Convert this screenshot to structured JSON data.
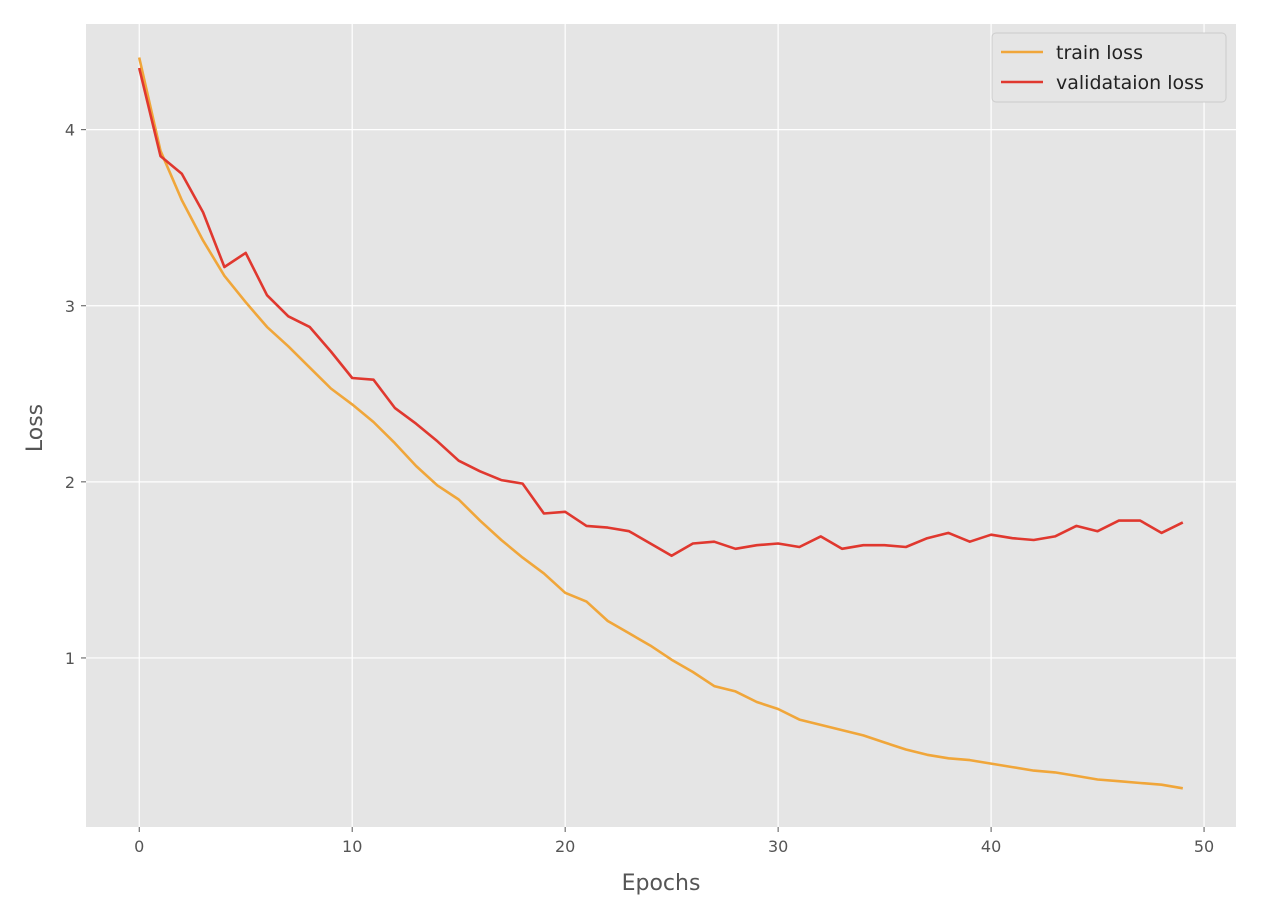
{
  "chart_data": {
    "type": "line",
    "title": "",
    "xlabel": "Epochs",
    "ylabel": "Loss",
    "xlim": [
      -2.5,
      51.5
    ],
    "ylim": [
      0.04,
      4.6
    ],
    "xticks": [
      0,
      10,
      20,
      30,
      40,
      50
    ],
    "yticks": [
      1,
      2,
      3,
      4
    ],
    "grid": true,
    "legend_position": "top-right",
    "x": [
      0,
      1,
      2,
      3,
      4,
      5,
      6,
      7,
      8,
      9,
      10,
      11,
      12,
      13,
      14,
      15,
      16,
      17,
      18,
      19,
      20,
      21,
      22,
      23,
      24,
      25,
      26,
      27,
      28,
      29,
      30,
      31,
      32,
      33,
      34,
      35,
      36,
      37,
      38,
      39,
      40,
      41,
      42,
      43,
      44,
      45,
      46,
      47,
      48,
      49
    ],
    "series": [
      {
        "name": "train loss",
        "color": "#f0a63a",
        "values": [
          4.41,
          3.88,
          3.6,
          3.37,
          3.17,
          3.02,
          2.88,
          2.77,
          2.65,
          2.53,
          2.44,
          2.34,
          2.22,
          2.09,
          1.98,
          1.9,
          1.78,
          1.67,
          1.57,
          1.48,
          1.37,
          1.32,
          1.21,
          1.14,
          1.07,
          0.99,
          0.92,
          0.84,
          0.81,
          0.75,
          0.71,
          0.65,
          0.62,
          0.59,
          0.56,
          0.52,
          0.48,
          0.45,
          0.43,
          0.42,
          0.4,
          0.38,
          0.36,
          0.35,
          0.33,
          0.31,
          0.3,
          0.29,
          0.28,
          0.26
        ]
      },
      {
        "name": "validataion loss",
        "color": "#e0382f",
        "values": [
          4.35,
          3.85,
          3.75,
          3.53,
          3.22,
          3.3,
          3.06,
          2.94,
          2.88,
          2.74,
          2.59,
          2.58,
          2.42,
          2.33,
          2.23,
          2.12,
          2.06,
          2.01,
          1.99,
          1.82,
          1.83,
          1.75,
          1.74,
          1.72,
          1.65,
          1.58,
          1.65,
          1.66,
          1.62,
          1.64,
          1.65,
          1.63,
          1.69,
          1.62,
          1.64,
          1.64,
          1.63,
          1.68,
          1.71,
          1.66,
          1.7,
          1.68,
          1.67,
          1.69,
          1.75,
          1.72,
          1.78,
          1.78,
          1.71,
          1.77
        ]
      }
    ]
  }
}
